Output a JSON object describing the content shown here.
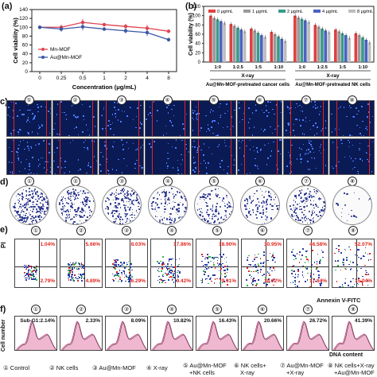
{
  "panels": {
    "a": "(a)",
    "b": "(b)",
    "c": "c)",
    "d": "d)",
    "e": "e)",
    "f": "f)"
  },
  "chart_data": [
    {
      "type": "line",
      "panel": "a",
      "xlabel": "Concentration (μg/mL)",
      "ylabel": "Cell viability (%)",
      "categories": [
        "0",
        "0.25",
        "0.5",
        "1",
        "2",
        "4",
        "8"
      ],
      "ylim": [
        0,
        140
      ],
      "yticks": [
        "0",
        "20",
        "40",
        "60",
        "80",
        "100",
        "120",
        "140"
      ],
      "series": [
        {
          "name": "Mn-MOF",
          "color": "#e0434f",
          "values": [
            100,
            100,
            111,
            106,
            102,
            98,
            91
          ]
        },
        {
          "name": "Au@Mn-MOF",
          "color": "#3b57a5",
          "values": [
            100,
            96,
            101,
            96,
            92,
            88,
            72
          ]
        }
      ]
    },
    {
      "type": "bar",
      "panel": "b",
      "ylabel": "Cell viability (%)",
      "ylim": [
        0,
        120
      ],
      "yticks": [
        "0",
        "20",
        "40",
        "60",
        "80",
        "100",
        "120"
      ],
      "categories": [
        "1:0",
        "1:2.5",
        "1:5",
        "1:10",
        "1:0",
        "1:2.5",
        "1:5",
        "1:10"
      ],
      "group_labels": [
        "X-ray",
        "X-ray"
      ],
      "bottom_labels": [
        "Au@Mn-MOF-pretreated cancer cells",
        "Au@Mn-MOF-pretreated NK cells"
      ],
      "series": [
        {
          "name": "0  μg/mL",
          "color": "#e04040",
          "values": [
            100,
            82,
            72,
            65,
            100,
            80,
            70,
            62
          ]
        },
        {
          "name": "1 μg/mL",
          "color": "#9a9a9a",
          "values": [
            95,
            78,
            68,
            60,
            96,
            76,
            66,
            58
          ]
        },
        {
          "name": "2 μg/mL",
          "color": "#3a9a8a",
          "values": [
            92,
            74,
            63,
            55,
            93,
            72,
            62,
            53
          ]
        },
        {
          "name": "4 μg/mL",
          "color": "#4a62c0",
          "values": [
            88,
            70,
            58,
            50,
            90,
            68,
            58,
            48
          ]
        },
        {
          "name": "8 μg/mL",
          "color": "#bdbdbd",
          "values": [
            84,
            66,
            54,
            45,
            86,
            64,
            52,
            42
          ]
        }
      ]
    },
    {
      "type": "scatter",
      "panel": "e",
      "xlabel": "Annexin V-FITC",
      "ylabel": "PI",
      "top_right_percent": [
        "1.04%",
        "5.66%",
        "8.03%",
        "17.86%",
        "18.90%",
        "30.95%",
        "46.58%",
        "52.07%"
      ],
      "bottom_right_percent": [
        "2.79%",
        "4.89%",
        "6.29%",
        "9.42%",
        "9.91%",
        "18.02%",
        "17.84%",
        "15.04%"
      ]
    },
    {
      "type": "area",
      "panel": "f",
      "ylabel": "Cell number",
      "xlabel": "DNA content",
      "sub_g1_label": "Sub-G",
      "sub_g1_values": [
        "1:2.14%",
        "2.33%",
        "8.09%",
        "10.82%",
        "16.43%",
        "20.66%",
        "26.72%",
        "41.39%"
      ]
    }
  ],
  "circle_numbers": [
    "①",
    "②",
    "③",
    "④",
    "⑤",
    "⑥",
    "⑦",
    "⑧"
  ],
  "legend_f": [
    "① Control",
    "② NK cells",
    "③ Au@Mn-MOF",
    "④ X-ray",
    "⑤ Au@Mn-MOF",
    "+NK cells",
    "⑥ NK cells+",
    "X-ray",
    "⑦ Au@Mn-MOF",
    "+X-ray",
    "⑧ NK cells+X-ray",
    "+Au@Mn-MOF"
  ],
  "colors": {
    "accent_red": "#e0261f",
    "navy": "#0a1a55",
    "blue_dot": "#2a3ea8",
    "pink": "#e8a0c0"
  }
}
